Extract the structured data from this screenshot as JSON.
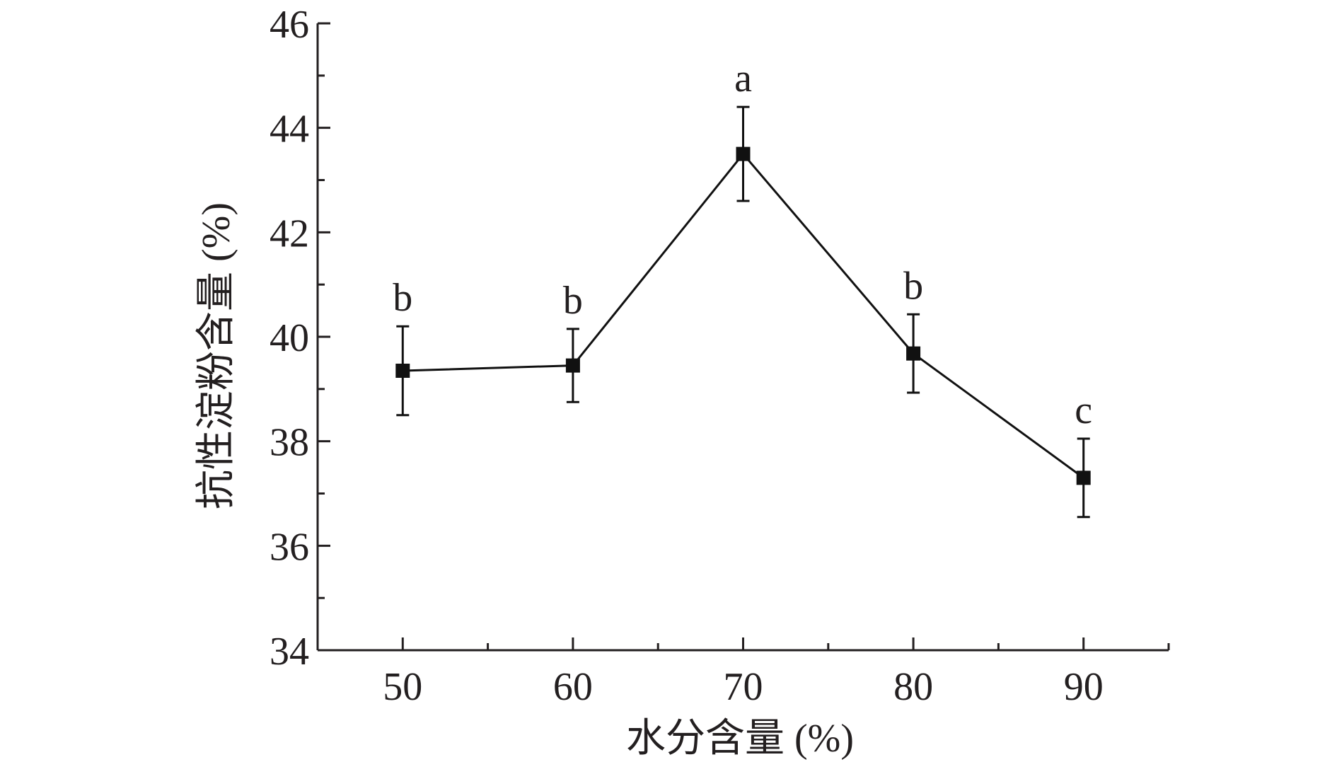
{
  "chart_data": {
    "type": "line",
    "xlabel": "水分含量 (%)",
    "ylabel": "抗性淀粉含量 (%)",
    "xlim": [
      45,
      95
    ],
    "ylim": [
      34,
      46
    ],
    "x_ticks": [
      50,
      60,
      70,
      80,
      90
    ],
    "y_ticks": [
      34,
      36,
      38,
      40,
      42,
      44,
      46
    ],
    "grid": false,
    "marker": "square",
    "colors": {
      "line": "#111111",
      "axis": "#231f20"
    },
    "series": [
      {
        "x": [
          50,
          60,
          70,
          80,
          90
        ],
        "y": [
          39.35,
          39.45,
          43.5,
          39.68,
          37.3
        ],
        "error": [
          0.85,
          0.7,
          0.9,
          0.75,
          0.75
        ],
        "labels": [
          "b",
          "b",
          "a",
          "b",
          "c"
        ]
      }
    ]
  }
}
